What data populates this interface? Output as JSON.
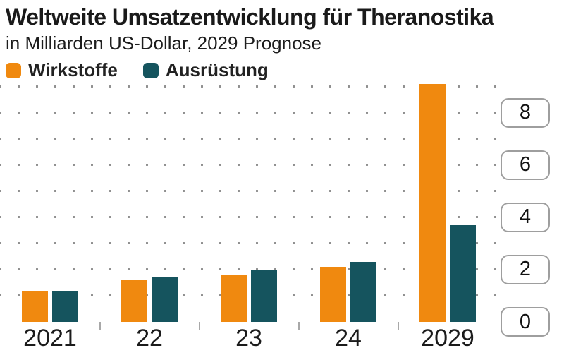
{
  "header": {
    "title": "Weltweite Umsatzentwicklung für Theranostika",
    "subtitle": "in Milliarden US-Dollar, 2029 Prognose"
  },
  "colors": {
    "orange": "#F0890F",
    "teal": "#15545E",
    "text_dark": "#1a1a1a",
    "grid_dot": "#8f8f8f",
    "tick_box_border": "#9e9e9e"
  },
  "chart_data": {
    "type": "bar",
    "title": "Weltweite Umsatzentwicklung für Theranostika",
    "subtitle": "in Milliarden US-Dollar, 2029 Prognose",
    "ylabel": "Milliarden US-Dollar",
    "xlabel": "",
    "categories": [
      "2021",
      "22",
      "23",
      "24",
      "2029"
    ],
    "series": [
      {
        "name": "Wirkstoffe",
        "color": "#F0890F",
        "values": [
          1.2,
          1.6,
          1.8,
          2.1,
          9.1
        ]
      },
      {
        "name": "Ausrüstung",
        "color": "#15545E",
        "values": [
          1.2,
          1.7,
          2.0,
          2.3,
          3.7
        ]
      }
    ],
    "y_axis": {
      "side": "right",
      "ticks": [
        8,
        6,
        4,
        2,
        0
      ],
      "ylim": [
        0,
        9.2
      ]
    },
    "grid": "dotted",
    "legend_position": "top-left",
    "note": "2029 Prognose"
  }
}
